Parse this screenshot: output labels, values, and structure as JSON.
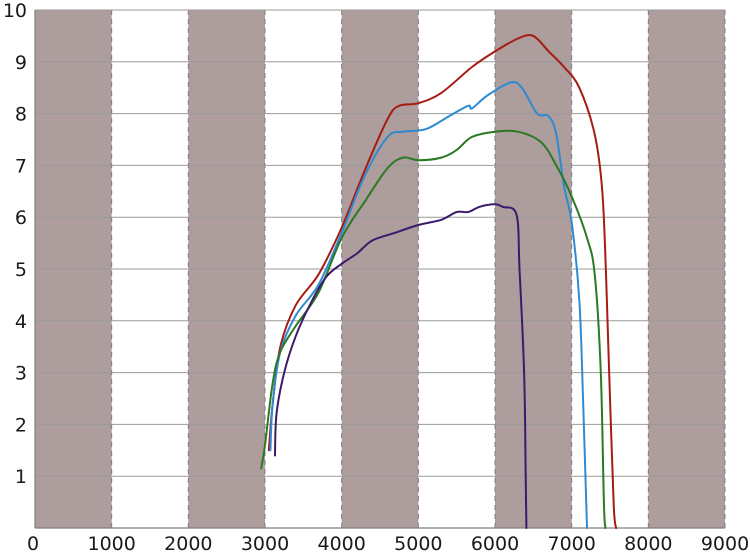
{
  "chart_data": {
    "type": "line",
    "title": "",
    "xlabel": "",
    "ylabel": "",
    "xlim": [
      0,
      9000
    ],
    "ylim": [
      0,
      10
    ],
    "x_ticks": [
      0,
      1000,
      2000,
      3000,
      4000,
      5000,
      6000,
      7000,
      8000,
      9000
    ],
    "y_ticks": [
      1,
      2,
      3,
      4,
      5,
      6,
      7,
      8,
      9,
      10
    ],
    "grid": true,
    "legend": "none",
    "background_bands": {
      "color": "#ad9d9c",
      "ranges": [
        [
          0,
          1000
        ],
        [
          2000,
          3000
        ],
        [
          4000,
          5000
        ],
        [
          6000,
          7000
        ],
        [
          8000,
          9000
        ]
      ]
    },
    "series": [
      {
        "color": "#a61b14",
        "points": [
          [
            3050,
            1.5
          ],
          [
            3100,
            2.4
          ],
          [
            3200,
            3.5
          ],
          [
            3400,
            4.3
          ],
          [
            3700,
            4.9
          ],
          [
            4000,
            5.8
          ],
          [
            4300,
            6.9
          ],
          [
            4600,
            7.9
          ],
          [
            4750,
            8.15
          ],
          [
            5000,
            8.2
          ],
          [
            5300,
            8.4
          ],
          [
            5700,
            8.9
          ],
          [
            6000,
            9.2
          ],
          [
            6300,
            9.45
          ],
          [
            6500,
            9.5
          ],
          [
            6700,
            9.2
          ],
          [
            6900,
            8.9
          ],
          [
            7100,
            8.5
          ],
          [
            7300,
            7.6
          ],
          [
            7400,
            6.5
          ],
          [
            7450,
            4.8
          ],
          [
            7500,
            2.5
          ],
          [
            7550,
            0.4
          ],
          [
            7580,
            0
          ]
        ]
      },
      {
        "color": "#2e8ad1",
        "points": [
          [
            3070,
            1.5
          ],
          [
            3100,
            2.4
          ],
          [
            3200,
            3.4
          ],
          [
            3400,
            4.1
          ],
          [
            3700,
            4.7
          ],
          [
            4000,
            5.7
          ],
          [
            4300,
            6.8
          ],
          [
            4600,
            7.55
          ],
          [
            4800,
            7.65
          ],
          [
            5100,
            7.7
          ],
          [
            5400,
            7.95
          ],
          [
            5650,
            8.15
          ],
          [
            5700,
            8.1
          ],
          [
            5900,
            8.35
          ],
          [
            6200,
            8.6
          ],
          [
            6350,
            8.5
          ],
          [
            6550,
            8.0
          ],
          [
            6700,
            7.95
          ],
          [
            6800,
            7.6
          ],
          [
            6900,
            6.6
          ],
          [
            7000,
            5.9
          ],
          [
            7100,
            4.4
          ],
          [
            7150,
            2.4
          ],
          [
            7200,
            0
          ]
        ]
      },
      {
        "color": "#2a7a24",
        "points": [
          [
            2950,
            1.15
          ],
          [
            3000,
            1.6
          ],
          [
            3100,
            2.8
          ],
          [
            3200,
            3.4
          ],
          [
            3400,
            3.9
          ],
          [
            3700,
            4.55
          ],
          [
            4000,
            5.6
          ],
          [
            4300,
            6.3
          ],
          [
            4600,
            6.95
          ],
          [
            4800,
            7.15
          ],
          [
            5000,
            7.1
          ],
          [
            5300,
            7.15
          ],
          [
            5500,
            7.3
          ],
          [
            5700,
            7.55
          ],
          [
            6000,
            7.65
          ],
          [
            6300,
            7.65
          ],
          [
            6600,
            7.45
          ],
          [
            6800,
            7.0
          ],
          [
            7000,
            6.4
          ],
          [
            7200,
            5.6
          ],
          [
            7300,
            4.9
          ],
          [
            7380,
            3.0
          ],
          [
            7420,
            0.5
          ],
          [
            7440,
            0
          ]
        ]
      },
      {
        "color": "#3c1a6b",
        "points": [
          [
            3130,
            1.4
          ],
          [
            3150,
            2.2
          ],
          [
            3250,
            3.0
          ],
          [
            3400,
            3.7
          ],
          [
            3600,
            4.35
          ],
          [
            3800,
            4.85
          ],
          [
            4000,
            5.1
          ],
          [
            4200,
            5.3
          ],
          [
            4400,
            5.55
          ],
          [
            4700,
            5.7
          ],
          [
            5000,
            5.85
          ],
          [
            5300,
            5.95
          ],
          [
            5500,
            6.1
          ],
          [
            5650,
            6.1
          ],
          [
            5800,
            6.2
          ],
          [
            6000,
            6.25
          ],
          [
            6100,
            6.2
          ],
          [
            6280,
            6.05
          ],
          [
            6320,
            5.0
          ],
          [
            6380,
            3.0
          ],
          [
            6400,
            1.0
          ],
          [
            6410,
            0
          ]
        ]
      }
    ]
  }
}
